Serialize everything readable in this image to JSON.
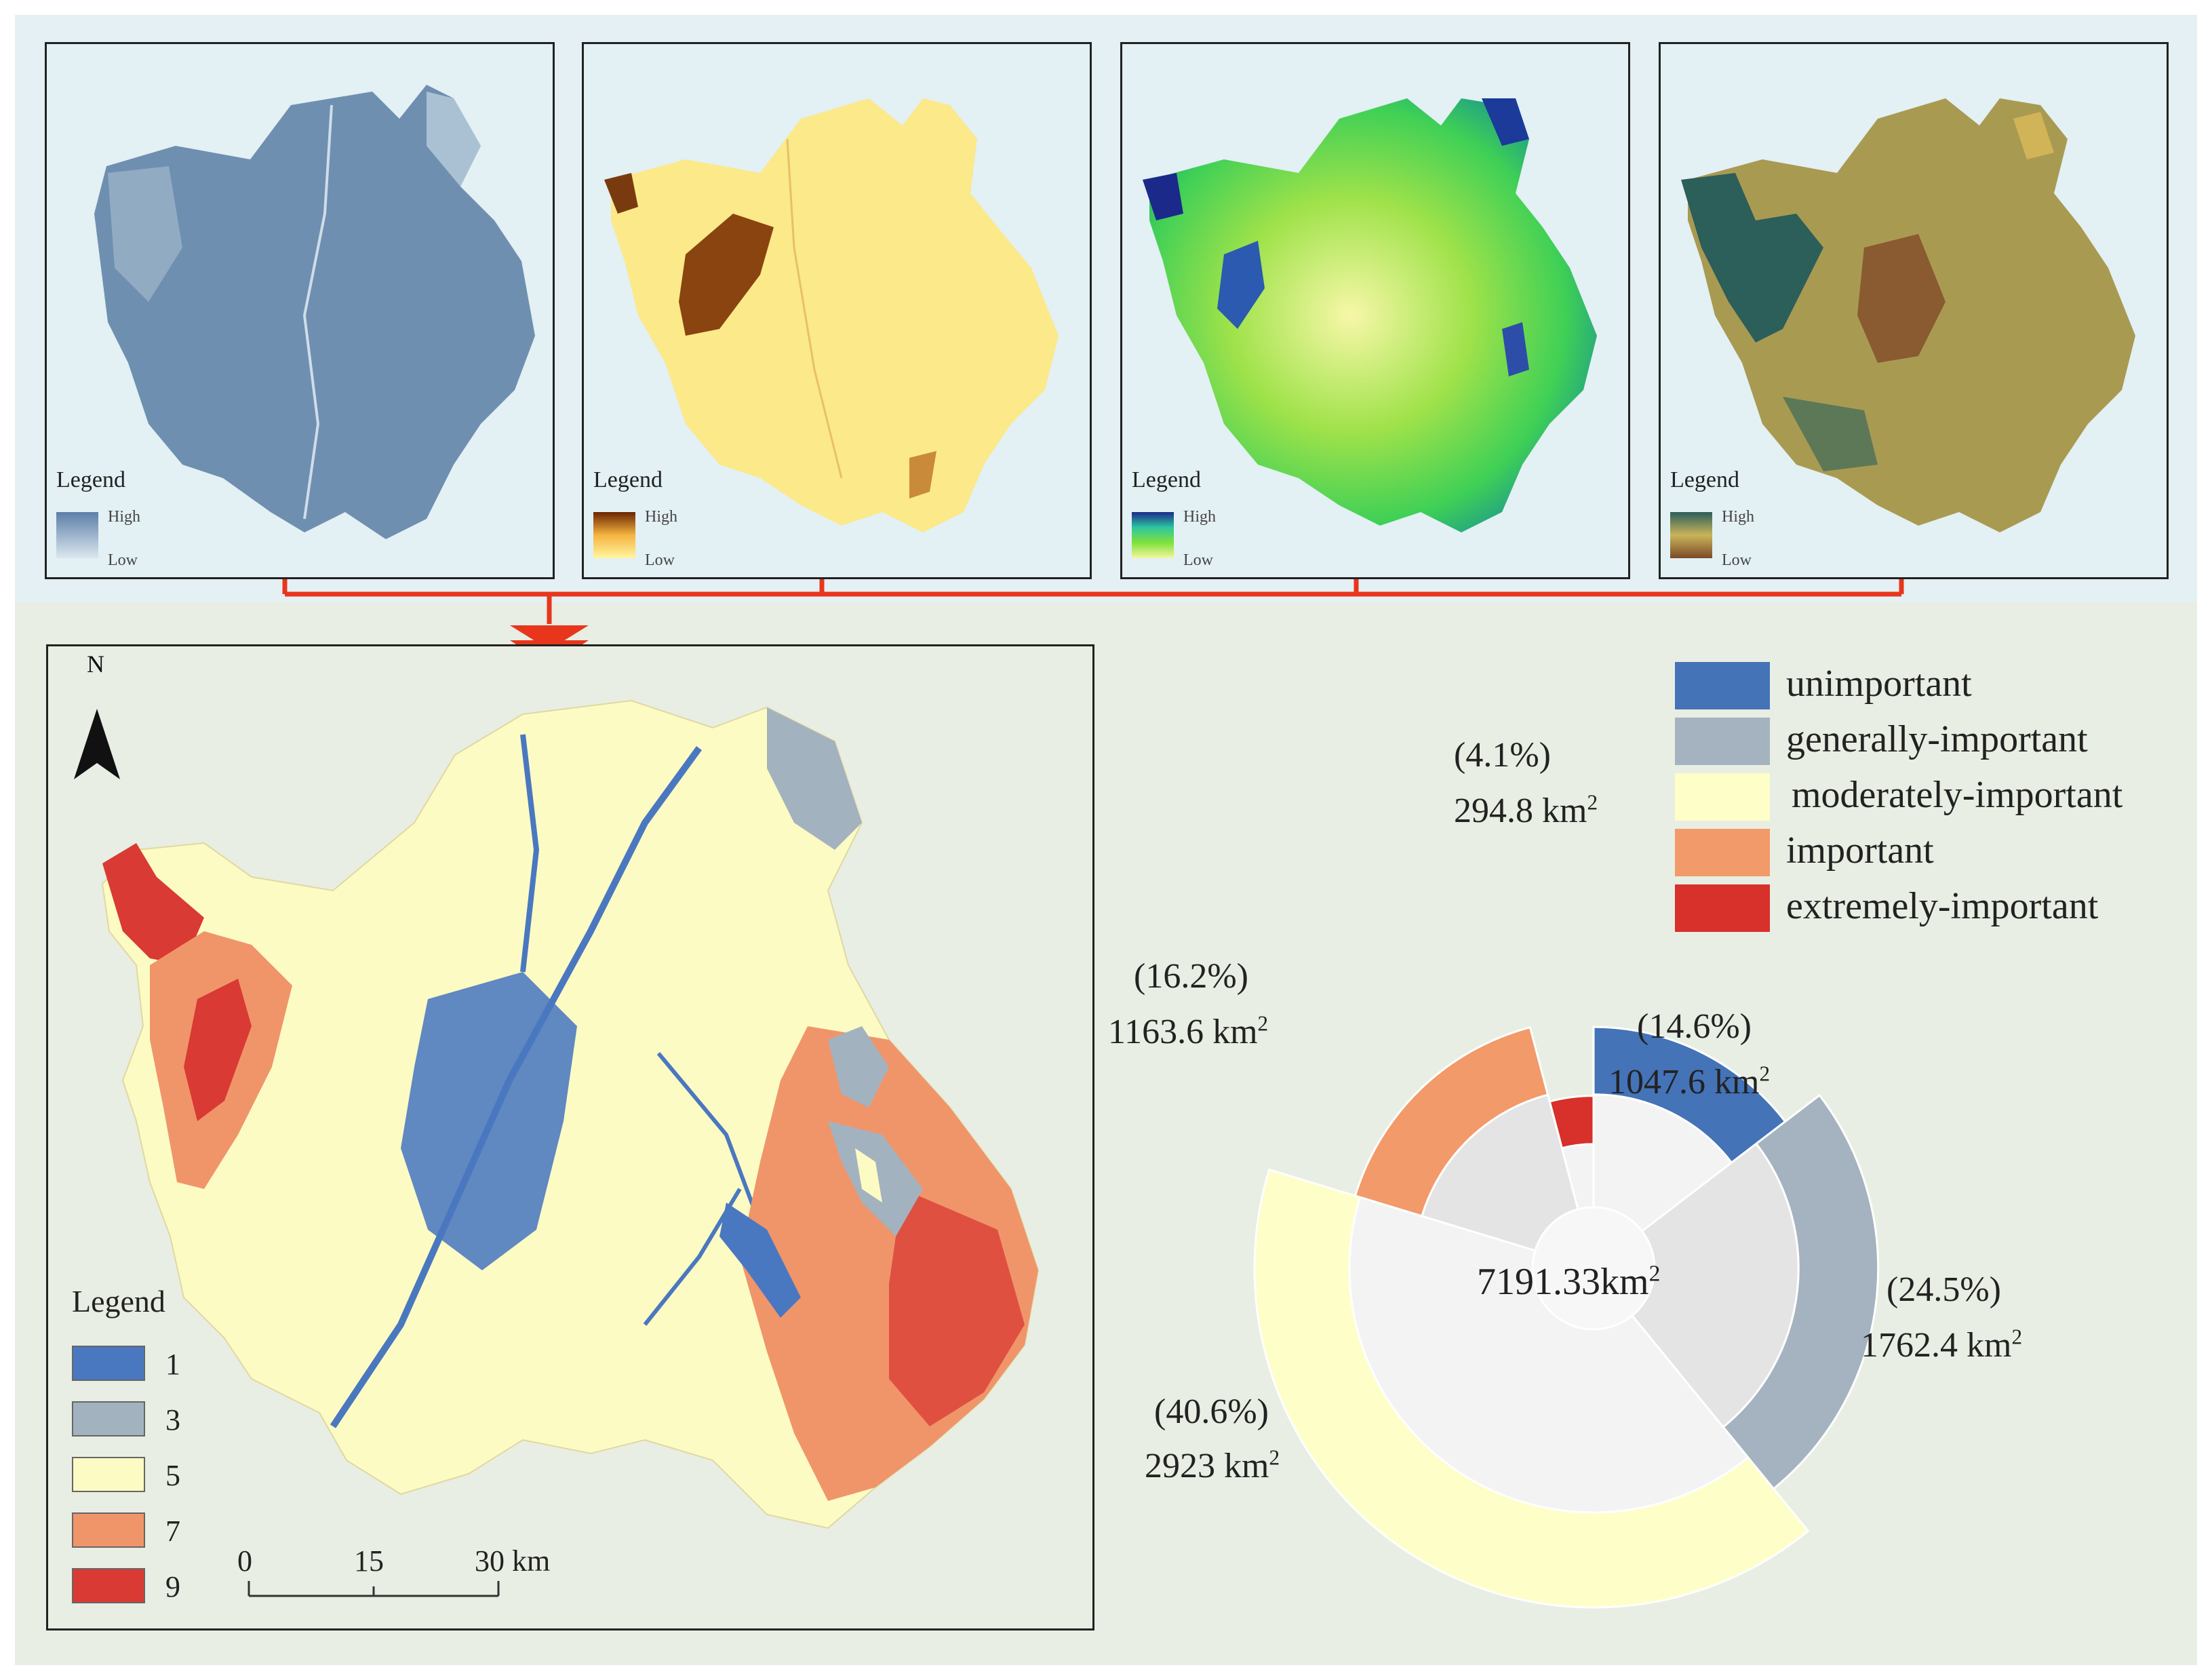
{
  "factor_maps": [
    {
      "name": "factor-map-1",
      "legend_title": "Legend",
      "high_label": "High",
      "low_label": "Low",
      "ramp_colors": [
        "#5d7fa8",
        "#dce7ef"
      ],
      "fill_color": "#6f8fb0"
    },
    {
      "name": "factor-map-2",
      "legend_title": "Legend",
      "high_label": "High",
      "low_label": "Low",
      "ramp_colors": [
        "#6b2400",
        "#f5b440",
        "#fff6a0"
      ],
      "fill_color": "#fbe98a"
    },
    {
      "name": "factor-map-3",
      "legend_title": "Legend",
      "high_label": "High",
      "low_label": "Low",
      "ramp_colors": [
        "#1b2a8a",
        "#2ec6a0",
        "#7fe23a",
        "#f5f6a0"
      ],
      "fill_color": "#8fe05a"
    },
    {
      "name": "factor-map-4",
      "legend_title": "Legend",
      "high_label": "High",
      "low_label": "Low",
      "ramp_colors": [
        "#2c5e5a",
        "#c9b45a",
        "#7a4a28"
      ],
      "fill_color": "#a99a52"
    }
  ],
  "main_map": {
    "north_label": "N",
    "legend_title": "Legend",
    "legend_items": [
      {
        "label": "1",
        "color": "#4a78c0"
      },
      {
        "label": "3",
        "color": "#a3b2bf"
      },
      {
        "label": "5",
        "color": "#fdfbc4"
      },
      {
        "label": "7",
        "color": "#f0956a"
      },
      {
        "label": "9",
        "color": "#d93a33"
      }
    ],
    "scale_labels": [
      "0",
      "15",
      "30 km"
    ]
  },
  "chart_data": {
    "type": "pie",
    "subtype": "nightingale rose with inner pie",
    "total_label": "7191.33km",
    "total_unit_sup": "2",
    "categories": [
      "unimportant",
      "generally-important",
      "moderately-important",
      "important",
      "extremely-important"
    ],
    "colors": [
      "#4473b7",
      "#a4b3bf",
      "#fefec8",
      "#f29a69",
      "#d8302b"
    ],
    "percent_labels": [
      "(14.6%)",
      "(24.5%)",
      "(40.6%)",
      "(16.2%)",
      "(4.1%)"
    ],
    "percent_values": [
      14.6,
      24.5,
      40.6,
      16.2,
      4.1
    ],
    "area_labels": [
      "1047.6 km",
      "1762.4 km",
      "2923 km",
      "1163.6 km",
      "294.8 km"
    ],
    "area_values": [
      1047.6,
      1762.4,
      2923,
      1163.6,
      294.8
    ],
    "area_unit_sup": "2",
    "legend_placement": "top-right"
  }
}
